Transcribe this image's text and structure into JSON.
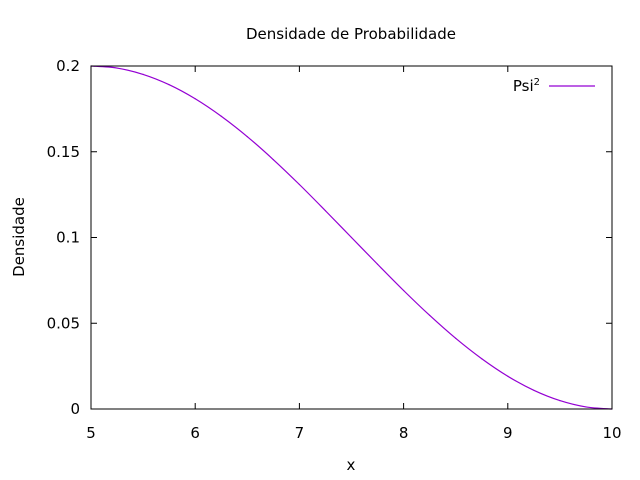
{
  "chart_data": {
    "type": "line",
    "title": "Densidade de Probabilidade",
    "xlabel": "x",
    "ylabel": "Densidade",
    "xlim": [
      5,
      10
    ],
    "ylim": [
      0,
      0.2
    ],
    "x_ticks": [
      5,
      6,
      7,
      8,
      9,
      10
    ],
    "x_tick_labels": [
      "5",
      "6",
      "7",
      "8",
      "9",
      "10"
    ],
    "y_ticks": [
      0,
      0.05,
      0.1,
      0.15,
      0.2
    ],
    "y_tick_labels": [
      "0",
      "0.05",
      "0.1",
      "0.15",
      "0.2"
    ],
    "grid": false,
    "legend_position": "top-right",
    "series": [
      {
        "name": "Psi",
        "name_superscript": "2",
        "color": "#9400d3",
        "x": [
          5.0,
          5.25,
          5.5,
          5.75,
          6.0,
          6.25,
          6.5,
          6.75,
          7.0,
          7.25,
          7.5,
          7.75,
          8.0,
          8.25,
          8.5,
          8.75,
          9.0,
          9.25,
          9.5,
          9.75,
          10.0
        ],
        "y": [
          0.2,
          0.1988,
          0.1951,
          0.1891,
          0.1809,
          0.1707,
          0.1588,
          0.1454,
          0.1309,
          0.1156,
          0.1,
          0.0844,
          0.0691,
          0.0546,
          0.0412,
          0.0293,
          0.0191,
          0.0109,
          0.0049,
          0.0012,
          0.0
        ]
      }
    ]
  }
}
